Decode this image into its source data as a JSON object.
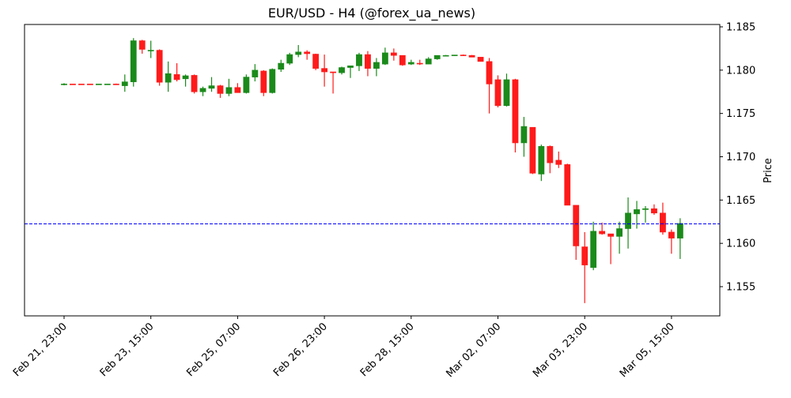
{
  "chart_data": {
    "type": "candlestick",
    "title": "EUR/USD - H4 (@forex_ua_news)",
    "xlabel": "",
    "ylabel": "Price",
    "ylim": [
      1.1517,
      1.1855
    ],
    "y_ticks": [
      "1.155",
      "1.160",
      "1.165",
      "1.170",
      "1.175",
      "1.180",
      "1.185"
    ],
    "x_ticks": [
      {
        "label": "Feb 21, 23:00",
        "index": 0
      },
      {
        "label": "Feb 23, 15:00",
        "index": 10
      },
      {
        "label": "Feb 25, 07:00",
        "index": 20
      },
      {
        "label": "Feb 26, 23:00",
        "index": 30
      },
      {
        "label": "Feb 28, 15:00",
        "index": 40
      },
      {
        "label": "Mar 02, 07:00",
        "index": 50
      },
      {
        "label": "Mar 03, 23:00",
        "index": 60
      },
      {
        "label": "Mar 05, 15:00",
        "index": 70
      }
    ],
    "grid": false,
    "up_color": "#1a8a1a",
    "down_color": "#ff1a1a",
    "hline": {
      "value": 1.16225,
      "color": "#0000ff",
      "style": "dashed"
    },
    "candles": [
      {
        "o": 1.17835,
        "h": 1.1785,
        "l": 1.17825,
        "c": 1.1784
      },
      {
        "o": 1.1784,
        "h": 1.1784,
        "l": 1.17835,
        "c": 1.17835
      },
      {
        "o": 1.1784,
        "h": 1.1784,
        "l": 1.17835,
        "c": 1.17835
      },
      {
        "o": 1.1784,
        "h": 1.1784,
        "l": 1.17835,
        "c": 1.17835
      },
      {
        "o": 1.17835,
        "h": 1.1784,
        "l": 1.17835,
        "c": 1.1784
      },
      {
        "o": 1.17835,
        "h": 1.1784,
        "l": 1.17835,
        "c": 1.1784
      },
      {
        "o": 1.1784,
        "h": 1.17845,
        "l": 1.1783,
        "c": 1.17835
      },
      {
        "o": 1.1782,
        "h": 1.1795,
        "l": 1.1775,
        "c": 1.17865
      },
      {
        "o": 1.17865,
        "h": 1.1837,
        "l": 1.1781,
        "c": 1.1834
      },
      {
        "o": 1.1834,
        "h": 1.1835,
        "l": 1.1819,
        "c": 1.1824
      },
      {
        "o": 1.1823,
        "h": 1.1834,
        "l": 1.1814,
        "c": 1.1823
      },
      {
        "o": 1.1823,
        "h": 1.1824,
        "l": 1.1782,
        "c": 1.1786
      },
      {
        "o": 1.1786,
        "h": 1.181,
        "l": 1.1775,
        "c": 1.1796
      },
      {
        "o": 1.1795,
        "h": 1.1808,
        "l": 1.1787,
        "c": 1.1789
      },
      {
        "o": 1.179,
        "h": 1.1795,
        "l": 1.1781,
        "c": 1.17935
      },
      {
        "o": 1.1794,
        "h": 1.1795,
        "l": 1.1773,
        "c": 1.1775
      },
      {
        "o": 1.1775,
        "h": 1.1781,
        "l": 1.177,
        "c": 1.1779
      },
      {
        "o": 1.1779,
        "h": 1.1792,
        "l": 1.1775,
        "c": 1.1782
      },
      {
        "o": 1.1782,
        "h": 1.1783,
        "l": 1.1768,
        "c": 1.1773
      },
      {
        "o": 1.1773,
        "h": 1.179,
        "l": 1.177,
        "c": 1.178
      },
      {
        "o": 1.178,
        "h": 1.1785,
        "l": 1.1774,
        "c": 1.1774
      },
      {
        "o": 1.1774,
        "h": 1.1795,
        "l": 1.1773,
        "c": 1.1792
      },
      {
        "o": 1.1792,
        "h": 1.1807,
        "l": 1.1787,
        "c": 1.18
      },
      {
        "o": 1.1799,
        "h": 1.18,
        "l": 1.177,
        "c": 1.1774
      },
      {
        "o": 1.1774,
        "h": 1.1802,
        "l": 1.1773,
        "c": 1.1801
      },
      {
        "o": 1.1801,
        "h": 1.1812,
        "l": 1.1798,
        "c": 1.1808
      },
      {
        "o": 1.1808,
        "h": 1.182,
        "l": 1.1806,
        "c": 1.1818
      },
      {
        "o": 1.1818,
        "h": 1.1829,
        "l": 1.1815,
        "c": 1.1821
      },
      {
        "o": 1.1821,
        "h": 1.1823,
        "l": 1.1812,
        "c": 1.1819
      },
      {
        "o": 1.18185,
        "h": 1.1819,
        "l": 1.18,
        "c": 1.1802
      },
      {
        "o": 1.1802,
        "h": 1.1818,
        "l": 1.1781,
        "c": 1.1798
      },
      {
        "o": 1.1798,
        "h": 1.1798,
        "l": 1.1773,
        "c": 1.1797
      },
      {
        "o": 1.1797,
        "h": 1.1804,
        "l": 1.1795,
        "c": 1.1803
      },
      {
        "o": 1.1803,
        "h": 1.1805,
        "l": 1.1791,
        "c": 1.1805
      },
      {
        "o": 1.1805,
        "h": 1.182,
        "l": 1.1799,
        "c": 1.1818
      },
      {
        "o": 1.1818,
        "h": 1.1822,
        "l": 1.1793,
        "c": 1.1802
      },
      {
        "o": 1.1802,
        "h": 1.1814,
        "l": 1.1793,
        "c": 1.1809
      },
      {
        "o": 1.1807,
        "h": 1.1826,
        "l": 1.1806,
        "c": 1.182
      },
      {
        "o": 1.182,
        "h": 1.1825,
        "l": 1.1811,
        "c": 1.1817
      },
      {
        "o": 1.1817,
        "h": 1.1817,
        "l": 1.1805,
        "c": 1.1806
      },
      {
        "o": 1.1807,
        "h": 1.1812,
        "l": 1.1806,
        "c": 1.1809
      },
      {
        "o": 1.1808,
        "h": 1.1812,
        "l": 1.1806,
        "c": 1.18075
      },
      {
        "o": 1.1807,
        "h": 1.1815,
        "l": 1.1807,
        "c": 1.1813
      },
      {
        "o": 1.1813,
        "h": 1.1817,
        "l": 1.1812,
        "c": 1.1817
      },
      {
        "o": 1.18165,
        "h": 1.18175,
        "l": 1.1816,
        "c": 1.1817
      },
      {
        "o": 1.1817,
        "h": 1.18175,
        "l": 1.18165,
        "c": 1.18175
      },
      {
        "o": 1.18175,
        "h": 1.1818,
        "l": 1.18165,
        "c": 1.1817
      },
      {
        "o": 1.1817,
        "h": 1.18175,
        "l": 1.1815,
        "c": 1.1815
      },
      {
        "o": 1.1815,
        "h": 1.1815,
        "l": 1.181,
        "c": 1.181
      },
      {
        "o": 1.181,
        "h": 1.1814,
        "l": 1.175,
        "c": 1.1784
      },
      {
        "o": 1.1789,
        "h": 1.1794,
        "l": 1.1757,
        "c": 1.1759
      },
      {
        "o": 1.1759,
        "h": 1.1796,
        "l": 1.1758,
        "c": 1.1789
      },
      {
        "o": 1.1789,
        "h": 1.179,
        "l": 1.1705,
        "c": 1.1716
      },
      {
        "o": 1.1716,
        "h": 1.1746,
        "l": 1.17,
        "c": 1.1735
      },
      {
        "o": 1.1734,
        "h": 1.1734,
        "l": 1.168,
        "c": 1.1681
      },
      {
        "o": 1.168,
        "h": 1.1714,
        "l": 1.1672,
        "c": 1.1712
      },
      {
        "o": 1.1712,
        "h": 1.1713,
        "l": 1.1681,
        "c": 1.1693
      },
      {
        "o": 1.1696,
        "h": 1.1706,
        "l": 1.1687,
        "c": 1.1691
      },
      {
        "o": 1.1691,
        "h": 1.1692,
        "l": 1.1644,
        "c": 1.1644
      },
      {
        "o": 1.1644,
        "h": 1.1644,
        "l": 1.1581,
        "c": 1.1597
      },
      {
        "o": 1.1596,
        "h": 1.1613,
        "l": 1.1531,
        "c": 1.1575
      },
      {
        "o": 1.1572,
        "h": 1.1625,
        "l": 1.1569,
        "c": 1.1614
      },
      {
        "o": 1.1614,
        "h": 1.1624,
        "l": 1.161,
        "c": 1.1611
      },
      {
        "o": 1.1611,
        "h": 1.1611,
        "l": 1.1576,
        "c": 1.1608
      },
      {
        "o": 1.1608,
        "h": 1.1625,
        "l": 1.1588,
        "c": 1.1617
      },
      {
        "o": 1.1617,
        "h": 1.1653,
        "l": 1.1594,
        "c": 1.1635
      },
      {
        "o": 1.1634,
        "h": 1.1649,
        "l": 1.1617,
        "c": 1.1639
      },
      {
        "o": 1.1639,
        "h": 1.1643,
        "l": 1.1624,
        "c": 1.164
      },
      {
        "o": 1.164,
        "h": 1.1645,
        "l": 1.1633,
        "c": 1.1635
      },
      {
        "o": 1.1635,
        "h": 1.1647,
        "l": 1.161,
        "c": 1.1613
      },
      {
        "o": 1.1613,
        "h": 1.1616,
        "l": 1.1588,
        "c": 1.1606
      },
      {
        "o": 1.1606,
        "h": 1.1629,
        "l": 1.1582,
        "c": 1.1623
      }
    ]
  }
}
